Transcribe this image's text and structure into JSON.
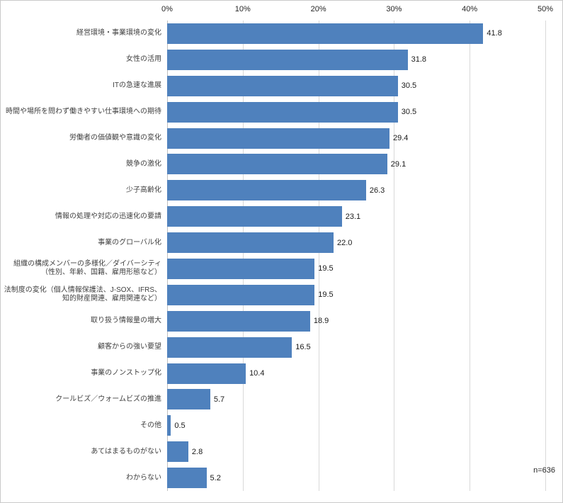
{
  "chart_data": {
    "type": "bar",
    "orientation": "horizontal",
    "title": "",
    "xlabel": "",
    "ylabel": "",
    "xlim": [
      0,
      50
    ],
    "x_ticks": [
      "0%",
      "10%",
      "20%",
      "30%",
      "40%",
      "50%"
    ],
    "grid": true,
    "legend": false,
    "bar_color": "#4f81bd",
    "gridline_color": "#d9d9d9",
    "axis_line_color": "#c0c0c0",
    "sample_note": "n=636",
    "categories": [
      "経営環境・事業環境の変化",
      "女性の活用",
      "ITの急速な進展",
      "時間や場所を問わず働きやすい仕事環境への期待",
      "労働者の価値観や意識の変化",
      "競争の激化",
      "少子高齢化",
      "情報の処理や対応の迅速化の要請",
      "事業のグローバル化",
      "組織の構成メンバーの多様化／ダイバーシティ\n（性別、年齢、国籍、雇用形態など）",
      "法制度の変化（個人情報保護法、J-SOX、IFRS、\n知的財産関連、雇用関連など）",
      "取り扱う情報量の増大",
      "顧客からの強い要望",
      "事業のノンストップ化",
      "クールビズ／ウォームビズの推進",
      "その他",
      "あてはまるものがない",
      "わからない"
    ],
    "values": [
      41.8,
      31.8,
      30.5,
      30.5,
      29.4,
      29.1,
      26.3,
      23.1,
      22.0,
      19.5,
      19.5,
      18.9,
      16.5,
      10.4,
      5.7,
      0.5,
      2.8,
      5.2
    ]
  }
}
